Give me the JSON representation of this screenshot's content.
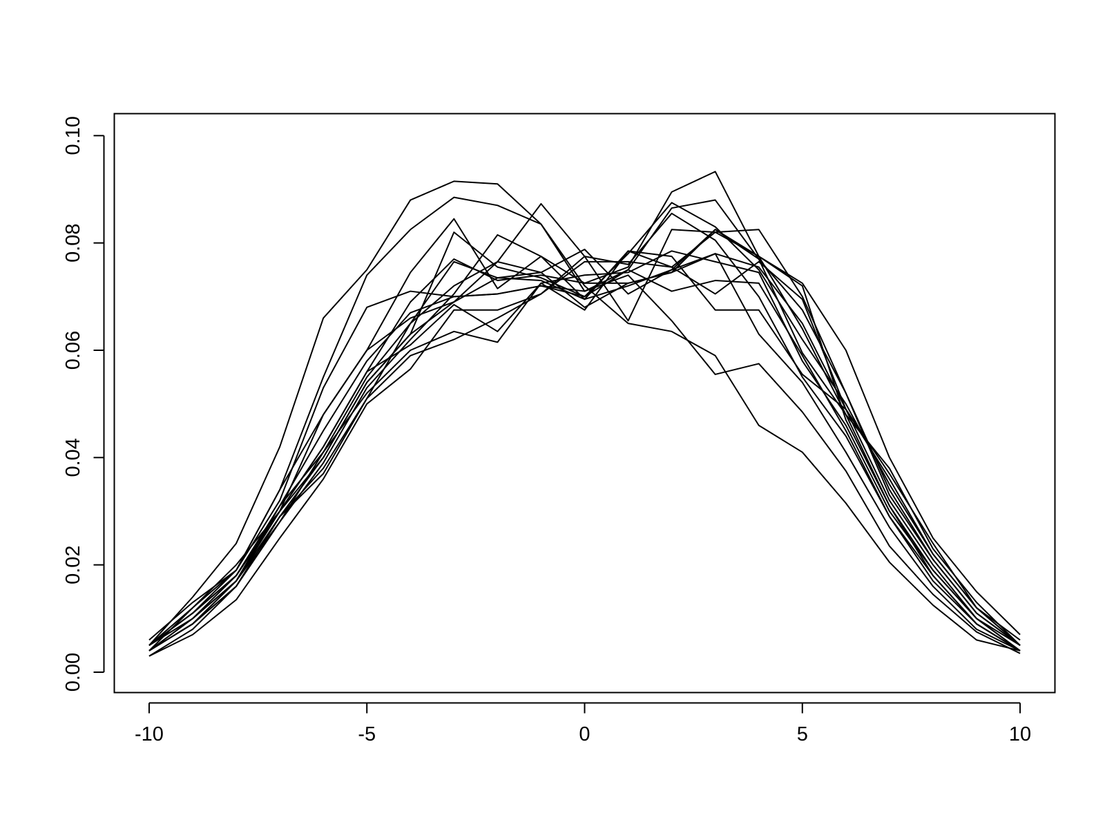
{
  "chart_data": {
    "type": "line",
    "x": [
      -10,
      -9,
      -8,
      -7,
      -6,
      -5,
      -4,
      -3,
      -2,
      -1,
      0,
      1,
      2,
      3,
      4,
      5,
      6,
      7,
      8,
      9,
      10
    ],
    "xlim": [
      -10.8,
      10.8
    ],
    "xticks": [
      -10,
      -5,
      0,
      5,
      10
    ],
    "ylim": [
      -0.0038,
      0.1041
    ],
    "yticks": [
      {
        "value": 0,
        "label": "0.00"
      },
      {
        "value": 0.02,
        "label": "0.02"
      },
      {
        "value": 0.04,
        "label": "0.04"
      },
      {
        "value": 0.06,
        "label": "0.06"
      },
      {
        "value": 0.08,
        "label": "0.08"
      },
      {
        "value": 0.1,
        "label": "0.10"
      }
    ],
    "grid": false,
    "series": [
      {
        "color": "#000000",
        "values": [
          0.005,
          0.014,
          0.024,
          0.042,
          0.066,
          0.075,
          0.088,
          0.0915,
          0.091,
          0.0835,
          0.072,
          0.065,
          0.0635,
          0.059,
          0.046,
          0.041,
          0.0315,
          0.0205,
          0.0125,
          0.006,
          0.004
        ]
      },
      {
        "color": "#000000",
        "values": [
          0.004,
          0.012,
          0.019,
          0.034,
          0.055,
          0.074,
          0.0825,
          0.0885,
          0.087,
          0.0835,
          0.071,
          0.074,
          0.0655,
          0.0555,
          0.0575,
          0.0485,
          0.0375,
          0.0235,
          0.0145,
          0.0075,
          0.0035
        ]
      },
      {
        "color": "#000000",
        "values": [
          0.004,
          0.01,
          0.017,
          0.03,
          0.042,
          0.056,
          0.069,
          0.077,
          0.073,
          0.074,
          0.0725,
          0.0755,
          0.0895,
          0.0933,
          0.0775,
          0.0725,
          0.06,
          0.04,
          0.025,
          0.015,
          0.007
        ]
      },
      {
        "color": "#000000",
        "values": [
          0.005,
          0.011,
          0.018,
          0.031,
          0.045,
          0.058,
          0.067,
          0.07,
          0.0705,
          0.072,
          0.07,
          0.075,
          0.0865,
          0.088,
          0.077,
          0.0675,
          0.052,
          0.033,
          0.021,
          0.011,
          0.005
        ]
      },
      {
        "color": "#000000",
        "values": [
          0.004,
          0.009,
          0.016,
          0.028,
          0.041,
          0.055,
          0.065,
          0.072,
          0.0765,
          0.0873,
          0.0775,
          0.0655,
          0.0825,
          0.082,
          0.0775,
          0.064,
          0.048,
          0.031,
          0.019,
          0.01,
          0.004
        ]
      },
      {
        "color": "#000000",
        "values": [
          0.005,
          0.01,
          0.018,
          0.03,
          0.048,
          0.06,
          0.0745,
          0.0845,
          0.0715,
          0.0775,
          0.0695,
          0.0785,
          0.0775,
          0.0675,
          0.0675,
          0.0555,
          0.049,
          0.036,
          0.022,
          0.012,
          0.005
        ]
      },
      {
        "color": "#000000",
        "values": [
          0.006,
          0.013,
          0.019,
          0.032,
          0.053,
          0.068,
          0.071,
          0.07,
          0.0705,
          0.072,
          0.071,
          0.075,
          0.071,
          0.073,
          0.0725,
          0.059,
          0.045,
          0.029,
          0.017,
          0.009,
          0.004
        ]
      },
      {
        "color": "#000000",
        "values": [
          0.003,
          0.008,
          0.016,
          0.029,
          0.04,
          0.054,
          0.063,
          0.082,
          0.0755,
          0.0735,
          0.07,
          0.078,
          0.0875,
          0.083,
          0.075,
          0.062,
          0.05,
          0.035,
          0.022,
          0.012,
          0.005
        ]
      },
      {
        "color": "#000000",
        "values": [
          0.004,
          0.009,
          0.016,
          0.029,
          0.038,
          0.051,
          0.059,
          0.062,
          0.066,
          0.0705,
          0.0765,
          0.0765,
          0.0755,
          0.082,
          0.0825,
          0.07,
          0.052,
          0.034,
          0.021,
          0.011,
          0.005
        ]
      },
      {
        "color": "#000000",
        "values": [
          0.003,
          0.007,
          0.0135,
          0.025,
          0.036,
          0.05,
          0.0565,
          0.0675,
          0.0675,
          0.0705,
          0.0775,
          0.076,
          0.0855,
          0.0805,
          0.07,
          0.055,
          0.044,
          0.029,
          0.018,
          0.009,
          0.004
        ]
      },
      {
        "color": "#000000",
        "values": [
          0.004,
          0.01,
          0.017,
          0.031,
          0.041,
          0.052,
          0.06,
          0.0635,
          0.0615,
          0.0725,
          0.074,
          0.0745,
          0.0785,
          0.0765,
          0.0745,
          0.058,
          0.046,
          0.03,
          0.019,
          0.01,
          0.004
        ]
      },
      {
        "color": "#000000",
        "values": [
          0.005,
          0.011,
          0.019,
          0.034,
          0.048,
          0.06,
          0.066,
          0.069,
          0.0735,
          0.073,
          0.0695,
          0.072,
          0.075,
          0.0825,
          0.077,
          0.0595,
          0.048,
          0.038,
          0.023,
          0.013,
          0.005
        ]
      },
      {
        "color": "#000000",
        "values": [
          0.004,
          0.009,
          0.017,
          0.029,
          0.037,
          0.051,
          0.065,
          0.0765,
          0.0735,
          0.0745,
          0.068,
          0.0725,
          0.0745,
          0.078,
          0.0755,
          0.065,
          0.049,
          0.032,
          0.02,
          0.01,
          0.005
        ]
      },
      {
        "color": "#000000",
        "values": [
          0.005,
          0.012,
          0.02,
          0.03,
          0.042,
          0.056,
          0.061,
          0.0685,
          0.0635,
          0.0725,
          0.0675,
          0.0785,
          0.0755,
          0.0705,
          0.0765,
          0.0695,
          0.049,
          0.037,
          0.024,
          0.012,
          0.006
        ]
      },
      {
        "color": "#000000",
        "values": [
          0.004,
          0.009,
          0.017,
          0.028,
          0.039,
          0.053,
          0.062,
          0.0705,
          0.0815,
          0.0775,
          0.0725,
          0.0725,
          0.0745,
          0.0825,
          0.0775,
          0.072,
          0.047,
          0.031,
          0.018,
          0.009,
          0.004
        ]
      },
      {
        "color": "#000000",
        "values": [
          0.005,
          0.011,
          0.018,
          0.03,
          0.04,
          0.054,
          0.063,
          0.069,
          0.0765,
          0.0745,
          0.0788,
          0.0705,
          0.075,
          0.078,
          0.063,
          0.054,
          0.041,
          0.027,
          0.016,
          0.008,
          0.004
        ]
      }
    ]
  }
}
